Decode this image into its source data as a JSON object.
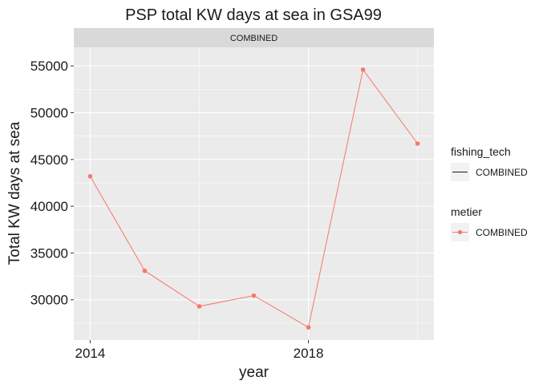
{
  "chart_data": {
    "type": "line",
    "title": "PSP total KW days at sea in GSA99",
    "facet_label": "COMBINED",
    "xlabel": "year",
    "ylabel": "Total KW days at sea",
    "x": [
      2014,
      2015,
      2016,
      2017,
      2018,
      2019,
      2020
    ],
    "x_ticks": [
      2014,
      2018
    ],
    "xlim": [
      2013.7,
      2020.3
    ],
    "y_ticks": [
      30000,
      35000,
      40000,
      45000,
      50000,
      55000
    ],
    "ylim": [
      25690,
      56990
    ],
    "series": [
      {
        "values": [
          43200,
          33100,
          29300,
          30450,
          27050,
          54600,
          46700
        ]
      }
    ],
    "color": "#F8766D",
    "grid": true,
    "panel_color": "#EBEBEB",
    "legends": [
      {
        "title": "fishing_tech",
        "key": "line",
        "label": "COMBINED"
      },
      {
        "title": "metier",
        "key": "point-line",
        "label": "COMBINED"
      }
    ],
    "legend_position": "right"
  }
}
